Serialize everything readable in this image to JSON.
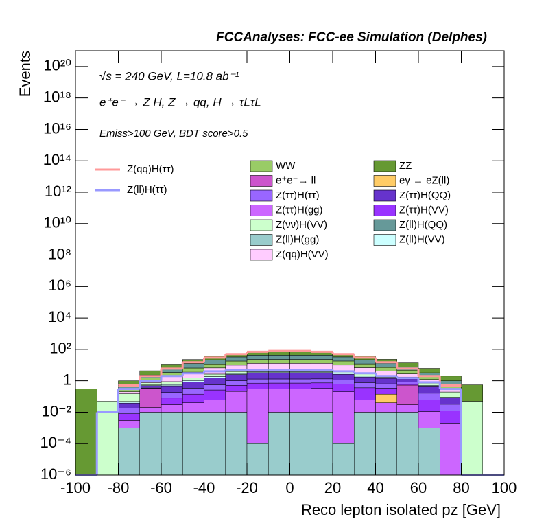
{
  "chart_data": {
    "type": "histogram",
    "title": "FCCAnalyses: FCC-ee Simulation (Delphes)",
    "annotations": [
      "√s = 240 GeV, L=10.8 ab⁻¹",
      "e⁺e⁻ → Z H, Z → qq, H → τLτL",
      "Emiss>100 GeV, BDT score>0.5"
    ],
    "x_label": "Reco lepton isolated pz [GeV]",
    "y_label": "Events",
    "log_y": true,
    "stacked": true,
    "bins": [
      -100,
      -90,
      -80,
      -70,
      -60,
      -50,
      -40,
      -30,
      -20,
      -10,
      0,
      10,
      20,
      30,
      40,
      50,
      60,
      70,
      80,
      90,
      100
    ],
    "xlim": [
      -100,
      100
    ],
    "xticks": [
      -100,
      -80,
      -60,
      -40,
      -20,
      0,
      20,
      40,
      60,
      80,
      100
    ],
    "ylim": [
      1e-06,
      1e+21
    ],
    "yticks": [
      {
        "value": 1e-06,
        "label": "10⁻⁶"
      },
      {
        "value": 0.0001,
        "label": "10⁻⁴"
      },
      {
        "value": 0.01,
        "label": "10⁻²"
      },
      1,
      {
        "value": 100,
        "label": "10²"
      },
      {
        "value": 10000.0,
        "label": "10⁴"
      },
      {
        "value": 1000000.0,
        "label": "10⁶"
      },
      {
        "value": 100000000.0,
        "label": "10⁸"
      },
      {
        "value": 10000000000.0,
        "label": "10¹⁰"
      },
      {
        "value": 1000000000000.0,
        "label": "10¹²"
      },
      {
        "value": 100000000000000.0,
        "label": "10¹⁴"
      },
      {
        "value": 1e+16,
        "label": "10¹⁶"
      },
      {
        "value": 1e+18,
        "label": "10¹⁸"
      },
      {
        "value": 1e+20,
        "label": "10²⁰"
      }
    ],
    "series": [
      {
        "name": "WW",
        "color": "#99cc66",
        "values": [
          null,
          null,
          0.1,
          0.5,
          1.5,
          3,
          5,
          8,
          10,
          10,
          10,
          10,
          8,
          5,
          3,
          2,
          1,
          0.3,
          null,
          null
        ]
      },
      {
        "name": "ZZ",
        "color": "#669933",
        "values": [
          0.3,
          null,
          0.5,
          2,
          5,
          10,
          15,
          20,
          25,
          25,
          25,
          25,
          20,
          15,
          10,
          6,
          3,
          1,
          0.5,
          null
        ]
      },
      {
        "name": "e⁺e⁻→ ll",
        "color": "#cc55cc",
        "values": [
          null,
          null,
          null,
          0.3,
          null,
          null,
          null,
          null,
          null,
          null,
          null,
          null,
          null,
          null,
          null,
          0.5,
          null,
          null,
          null,
          null
        ]
      },
      {
        "name": "eγ → eZ(ll)",
        "color": "#ffcc66",
        "values": [
          null,
          null,
          null,
          null,
          null,
          null,
          null,
          null,
          null,
          null,
          null,
          0.02,
          null,
          null,
          0.1,
          null,
          null,
          null,
          null,
          null
        ]
      },
      {
        "name": "Z(ττ)H(ττ)",
        "color": "#9966ff",
        "values": [
          null,
          null,
          0.01,
          0.05,
          0.1,
          0.2,
          0.3,
          0.5,
          0.6,
          0.6,
          0.6,
          0.6,
          0.5,
          0.4,
          0.3,
          0.2,
          0.1,
          0.02,
          null,
          null
        ]
      },
      {
        "name": "Z(ττ)H(QQ)",
        "color": "#6633cc",
        "values": [
          null,
          null,
          0.02,
          0.1,
          0.3,
          0.5,
          1,
          1.5,
          2,
          2,
          2,
          2,
          1.5,
          1,
          0.8,
          0.5,
          0.3,
          0.05,
          null,
          null
        ]
      },
      {
        "name": "Z(ττ)H(gg)",
        "color": "#cc66ff",
        "values": [
          null,
          null,
          0.002,
          0.01,
          0.02,
          0.03,
          0.05,
          0.2,
          0.3,
          0.3,
          0.3,
          0.3,
          0.2,
          0.05,
          0.03,
          0.02,
          0.01,
          0.002,
          null,
          null
        ]
      },
      {
        "name": "Z(ττ)H(VV)",
        "color": "#9933ff",
        "values": [
          null,
          null,
          0.005,
          0.02,
          0.05,
          0.1,
          0.2,
          0.3,
          0.4,
          0.4,
          0.4,
          0.4,
          0.4,
          0.3,
          0.2,
          0.1,
          0.05,
          0.01,
          null,
          null
        ]
      },
      {
        "name": "Z(νν)H(VV)",
        "color": "#ccffcc",
        "values": [
          null,
          0.05,
          0.1,
          0.2,
          0.3,
          0.5,
          0.8,
          1,
          1,
          1,
          1,
          1,
          1,
          0.8,
          0.5,
          0.3,
          0.2,
          0.1,
          0.05,
          null
        ]
      },
      {
        "name": "Z(ll)H(QQ)",
        "color": "#669999",
        "values": [
          null,
          null,
          0.2,
          0.8,
          3,
          6,
          10,
          15,
          20,
          20,
          20,
          20,
          15,
          10,
          6,
          3,
          1,
          0.4,
          null,
          null
        ]
      },
      {
        "name": "Z(ll)H(gg)",
        "color": "#99cccc",
        "values": [
          null,
          null,
          0.001,
          0.01,
          0.01,
          0.01,
          0.01,
          0.01,
          0.0001,
          0.01,
          0.01,
          0.01,
          0.0001,
          0.01,
          0.01,
          0.01,
          0.001,
          null,
          null,
          null
        ]
      },
      {
        "name": "Z(ll)H(VV)",
        "color": "#ccffff",
        "values": [
          null,
          null,
          0.01,
          0.05,
          0.1,
          0.2,
          0.3,
          0.4,
          0.5,
          0.5,
          0.5,
          0.5,
          0.4,
          0.3,
          0.2,
          0.1,
          0.05,
          0.01,
          null,
          null
        ]
      },
      {
        "name": "Z(qq)H(VV)",
        "color": "#ffccff",
        "values": [
          null,
          null,
          0.05,
          0.3,
          1,
          2,
          4,
          6,
          8,
          8,
          8,
          8,
          6,
          4,
          2,
          1,
          0.5,
          0.1,
          null,
          null
        ]
      }
    ],
    "lines": [
      {
        "name": "Z(qq)H(ττ)",
        "color": "#ff9999",
        "values": [
          null,
          null,
          0.5,
          2,
          6,
          15,
          30,
          50,
          70,
          80,
          80,
          70,
          50,
          30,
          15,
          6,
          2,
          0.5,
          null,
          null
        ]
      },
      {
        "name": "Z(ll)H(ττ)",
        "color": "#9999ff",
        "values": [
          1e-06,
          0.01,
          0.3,
          1,
          2,
          3,
          4,
          5,
          5,
          5,
          5,
          5,
          4,
          3,
          2,
          1.5,
          0.8,
          0.3,
          1e-06,
          1e-06
        ]
      }
    ]
  }
}
